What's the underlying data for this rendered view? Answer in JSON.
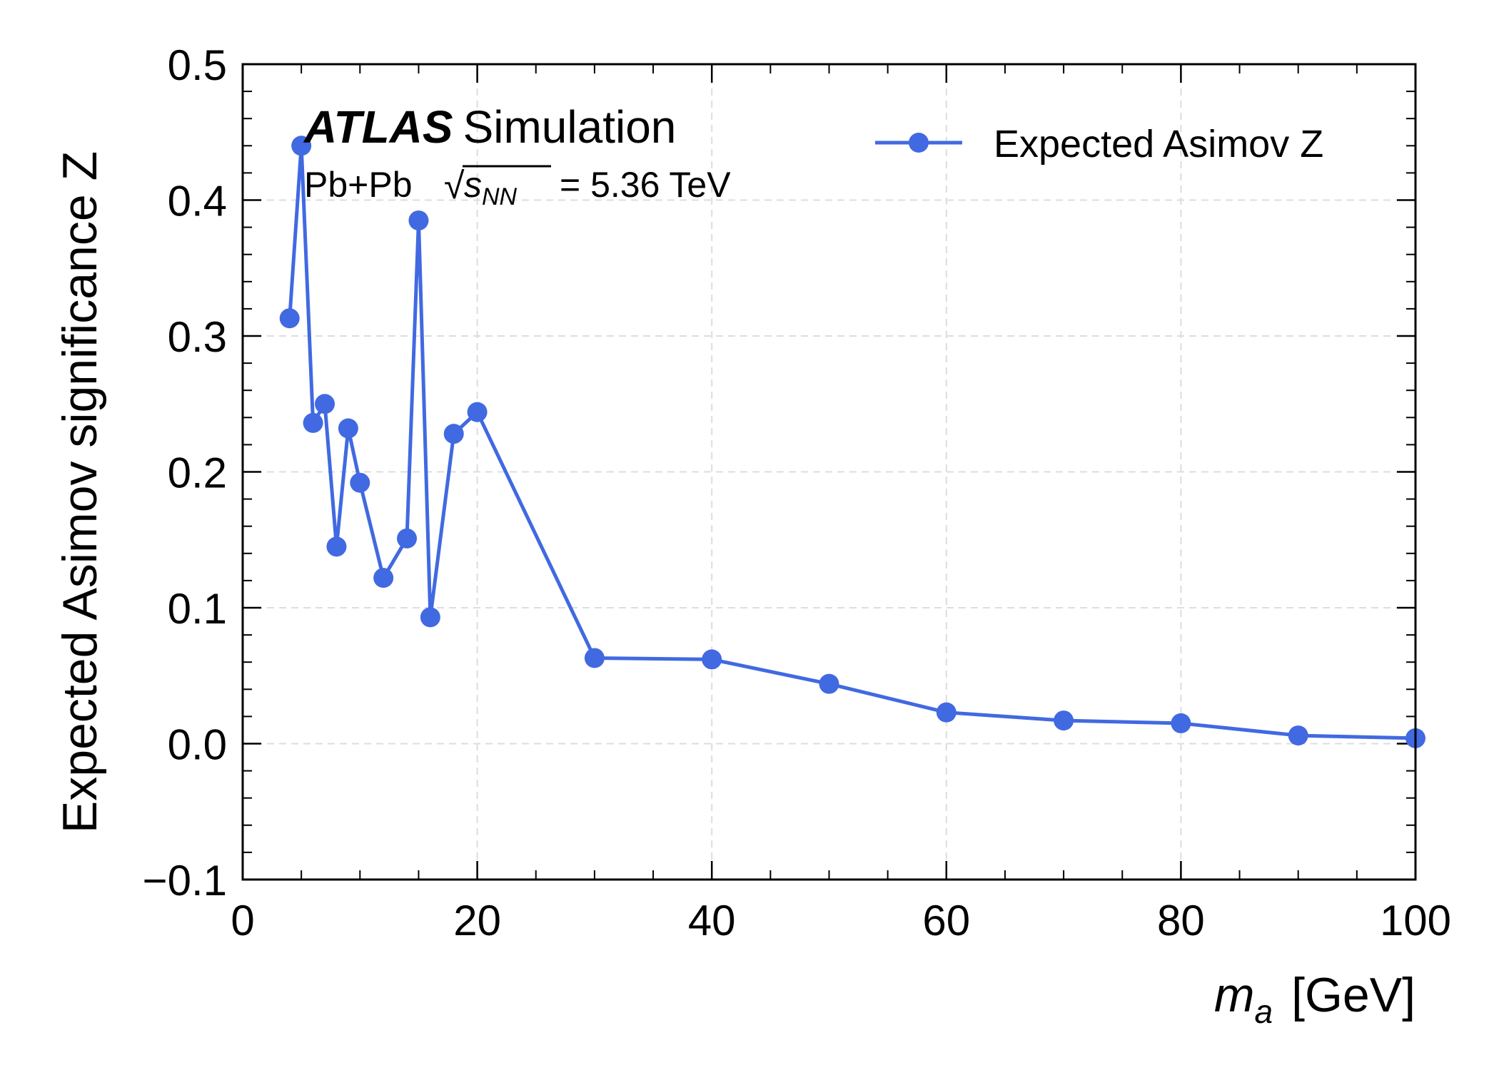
{
  "chart_data": {
    "type": "line",
    "xlabel_var": "m",
    "xlabel_sub": "a",
    "xlabel_unit": "[GeV]",
    "ylabel": "Expected Asimov significance Z",
    "xlim": [
      0,
      100
    ],
    "ylim": [
      -0.1,
      0.5
    ],
    "x_ticks": [
      "0",
      "20",
      "40",
      "60",
      "80",
      "100"
    ],
    "y_ticks": [
      "−0.1",
      "0.0",
      "0.1",
      "0.2",
      "0.3",
      "0.4",
      "0.5"
    ],
    "grid": true,
    "legend_position": "top-right",
    "experiment": {
      "name": "ATLAS",
      "status": "Simulation",
      "system": "Pb+Pb",
      "energy_symbol": "s",
      "energy_subscript": "NN",
      "energy_value": "= 5.36 TeV"
    },
    "series": [
      {
        "name": "Expected Asimov Z",
        "color": "#4169e1",
        "x": [
          4,
          5,
          6,
          7,
          8,
          9,
          10,
          12,
          14,
          15,
          16,
          18,
          20,
          30,
          40,
          50,
          60,
          70,
          80,
          90,
          100
        ],
        "y": [
          0.313,
          0.44,
          0.236,
          0.25,
          0.145,
          0.232,
          0.192,
          0.122,
          0.151,
          0.385,
          0.093,
          0.228,
          0.244,
          0.063,
          0.062,
          0.044,
          0.023,
          0.017,
          0.015,
          0.006,
          0.004
        ]
      }
    ]
  }
}
